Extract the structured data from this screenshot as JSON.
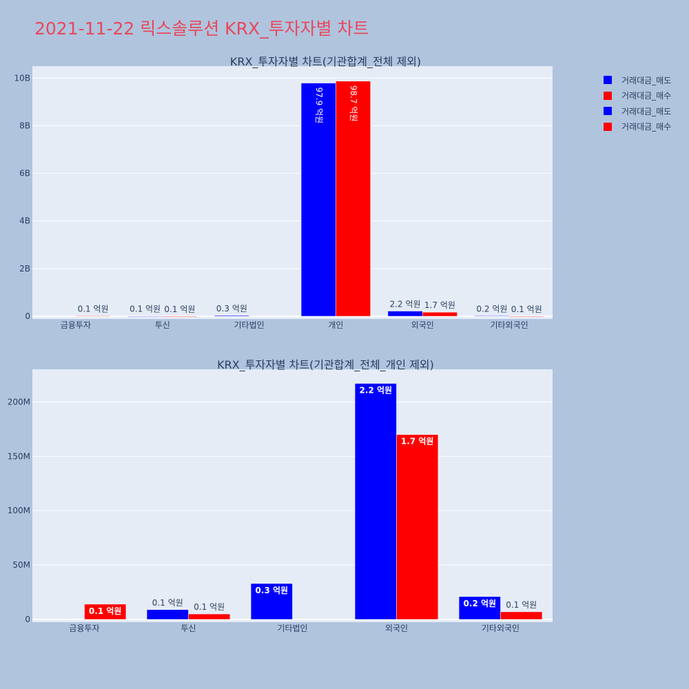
{
  "page_title": "2021-11-22 릭스솔루션 KRX_투자자별 차트",
  "colors": {
    "sell": "#0000ff",
    "buy": "#ff0000",
    "plot_bg": "#e5ecf6",
    "page_bg": "#b0c4de",
    "title": "#e8485a"
  },
  "legend": [
    {
      "label": "거래대금_매도",
      "color": "#0000ff"
    },
    {
      "label": "거래대금_매수",
      "color": "#ff0000"
    },
    {
      "label": "거래대금_매도",
      "color": "#0000ff"
    },
    {
      "label": "거래대금_매수",
      "color": "#ff0000"
    }
  ],
  "chart_data": [
    {
      "type": "bar",
      "title": "KRX_투자자별 차트(기관합계_전체 제외)",
      "categories": [
        "금융투자",
        "투신",
        "기타법인",
        "개인",
        "외국인",
        "기타외국인"
      ],
      "ylim": [
        0,
        10500000000
      ],
      "yticks": [
        0,
        2000000000,
        4000000000,
        6000000000,
        8000000000,
        10000000000
      ],
      "yticklabels": [
        "0",
        "2B",
        "4B",
        "6B",
        "8B",
        "10B"
      ],
      "series": [
        {
          "name": "거래대금_매도",
          "color": "#0000ff",
          "values": [
            0,
            9000000,
            33000000,
            9790000000,
            217000000,
            21000000
          ],
          "labels": [
            "",
            "0.1 억원",
            "0.3 억원",
            "97.9 억원",
            "2.2 억원",
            "0.2 억원"
          ]
        },
        {
          "name": "거래대금_매수",
          "color": "#ff0000",
          "values": [
            14000000,
            5000000,
            0,
            9870000000,
            170000000,
            7000000
          ],
          "labels": [
            "0.1 억원",
            "0.1 억원",
            "",
            "98.7 억원",
            "1.7 억원",
            "0.1 억원"
          ]
        }
      ]
    },
    {
      "type": "bar",
      "title": "KRX_투자자별 차트(기관합계_전체_개인 제외)",
      "categories": [
        "금융투자",
        "투신",
        "기타법인",
        "외국인",
        "기타외국인"
      ],
      "ylim": [
        0,
        230000000
      ],
      "yticks": [
        0,
        50000000,
        100000000,
        150000000,
        200000000
      ],
      "yticklabels": [
        "0",
        "50M",
        "100M",
        "150M",
        "200M"
      ],
      "series": [
        {
          "name": "거래대금_매도",
          "color": "#0000ff",
          "values": [
            0,
            9000000,
            33000000,
            217000000,
            21000000
          ],
          "labels": [
            "",
            "0.1 억원",
            "0.3 억원",
            "2.2 억원",
            "0.2 억원"
          ]
        },
        {
          "name": "거래대금_매수",
          "color": "#ff0000",
          "values": [
            14000000,
            5000000,
            0,
            170000000,
            7000000
          ],
          "labels": [
            "0.1 억원",
            "0.1 억원",
            "",
            "1.7 억원",
            "0.1 억원"
          ]
        }
      ]
    }
  ]
}
